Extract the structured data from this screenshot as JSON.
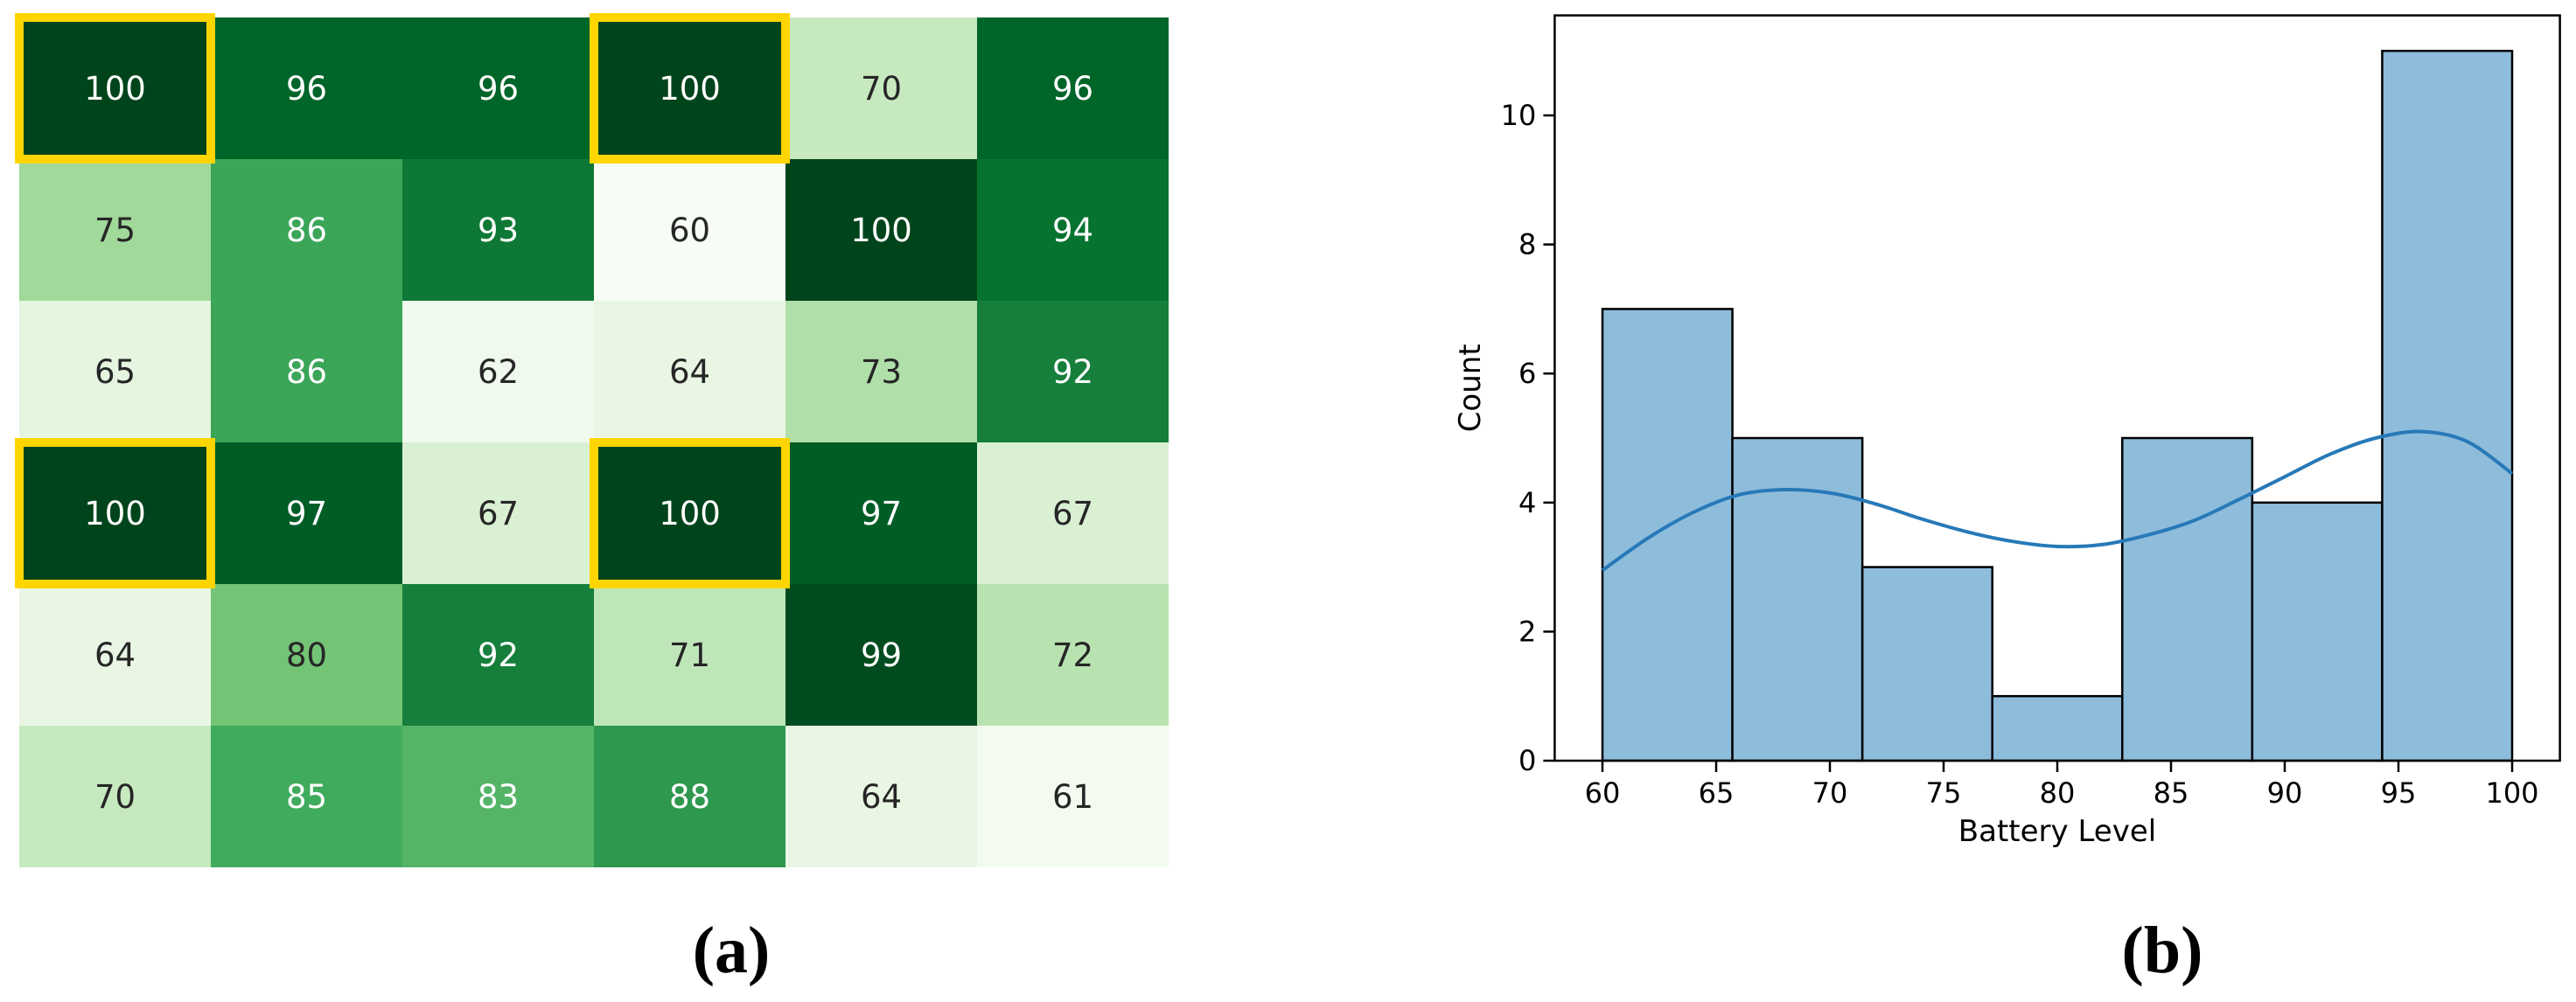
{
  "figure": {
    "background": "#ffffff"
  },
  "chart_data": [
    {
      "type": "heatmap",
      "panel_label": "(a)",
      "colormap": "Greens",
      "vmin": 60,
      "vmax": 100,
      "highlight_color": "#FFD500",
      "highlighted_cells": [
        [
          0,
          0
        ],
        [
          0,
          3
        ],
        [
          3,
          0
        ],
        [
          3,
          3
        ]
      ],
      "values": [
        [
          100,
          96,
          96,
          100,
          70,
          96
        ],
        [
          75,
          86,
          93,
          60,
          100,
          94
        ],
        [
          65,
          86,
          62,
          64,
          73,
          92
        ],
        [
          100,
          97,
          67,
          100,
          97,
          67
        ],
        [
          64,
          80,
          92,
          71,
          99,
          72
        ],
        [
          70,
          85,
          83,
          88,
          64,
          61
        ]
      ],
      "cell_colors": [
        [
          "#00441b",
          "#006529",
          "#006529",
          "#00441b",
          "#c7e9c0",
          "#006529"
        ],
        [
          "#a1d99b",
          "#3ba558",
          "#0e7936",
          "#f7fcf5",
          "#00441b",
          "#077331"
        ],
        [
          "#e5f5e0",
          "#3ba558",
          "#f0f9ed",
          "#e9f6e4",
          "#b0dfaa",
          "#157f3b"
        ],
        [
          "#00441b",
          "#005d25",
          "#d9f0d3",
          "#00441b",
          "#005d25",
          "#d9f0d3"
        ],
        [
          "#e9f6e4",
          "#74c476",
          "#157f3b",
          "#bfe6b9",
          "#004c1e",
          "#b8e3b1"
        ],
        [
          "#c7e9c0",
          "#41ab5d",
          "#55b567",
          "#2f984f",
          "#e9f6e4",
          "#f3fbf1"
        ]
      ],
      "text_colors": [
        [
          "#ffffff",
          "#ffffff",
          "#ffffff",
          "#ffffff",
          "#262626",
          "#ffffff"
        ],
        [
          "#262626",
          "#ffffff",
          "#ffffff",
          "#262626",
          "#ffffff",
          "#ffffff"
        ],
        [
          "#262626",
          "#ffffff",
          "#262626",
          "#262626",
          "#262626",
          "#ffffff"
        ],
        [
          "#ffffff",
          "#ffffff",
          "#262626",
          "#ffffff",
          "#ffffff",
          "#262626"
        ],
        [
          "#262626",
          "#262626",
          "#ffffff",
          "#262626",
          "#ffffff",
          "#262626"
        ],
        [
          "#262626",
          "#ffffff",
          "#ffffff",
          "#ffffff",
          "#262626",
          "#262626"
        ]
      ]
    },
    {
      "type": "bar",
      "subtype": "histogram_with_kde",
      "panel_label": "(b)",
      "title": "",
      "xlabel": "Battery Level",
      "ylabel": "Count",
      "bin_edges": [
        60,
        65.714,
        71.429,
        77.143,
        82.857,
        88.571,
        94.286,
        100
      ],
      "counts": [
        7,
        5,
        3,
        1,
        5,
        4,
        11
      ],
      "x_ticks": [
        60,
        65,
        70,
        75,
        80,
        85,
        90,
        95,
        100
      ],
      "y_ticks": [
        0,
        2,
        4,
        6,
        8,
        10
      ],
      "xlim": [
        57.9,
        102.1
      ],
      "ylim": [
        0,
        11.55
      ],
      "grid": "off",
      "bar_fill": "#8ebcdb",
      "bar_edge": "#000000",
      "kde_color": "#2779b8",
      "axis_color": "#000000",
      "kde_x": [
        60,
        62,
        64,
        66,
        68,
        70,
        72,
        74,
        76,
        78,
        80,
        82,
        84,
        86,
        88,
        90,
        92,
        94,
        96,
        98,
        100
      ],
      "kde_y": [
        2.95,
        3.45,
        3.85,
        4.12,
        4.2,
        4.15,
        3.98,
        3.75,
        3.55,
        3.4,
        3.32,
        3.35,
        3.5,
        3.72,
        4.05,
        4.4,
        4.75,
        5.0,
        5.1,
        4.95,
        4.45
      ]
    }
  ]
}
